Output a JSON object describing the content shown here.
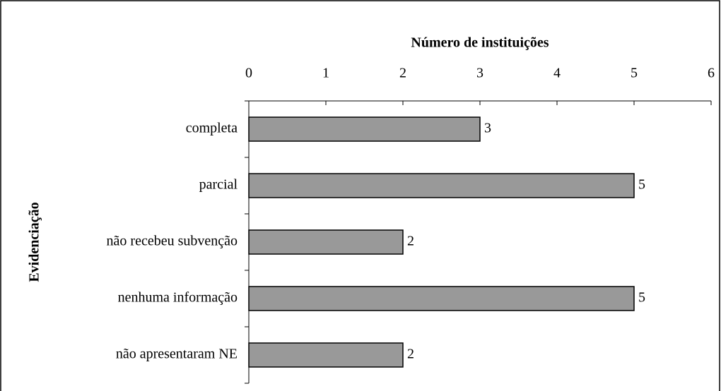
{
  "chart_data": {
    "type": "bar",
    "orientation": "horizontal",
    "title": "Número de instituições",
    "y_label": "Evidenciação",
    "categories": [
      "completa",
      "parcial",
      "não recebeu subvenção",
      "nenhuma informação",
      "não apresentaram NE"
    ],
    "values": [
      3,
      5,
      2,
      5,
      2
    ],
    "color": "#999999",
    "xlim": [
      0,
      6
    ],
    "xticks": [
      0,
      1,
      2,
      3,
      4,
      5,
      6
    ],
    "grid": false,
    "data_labels": true
  }
}
